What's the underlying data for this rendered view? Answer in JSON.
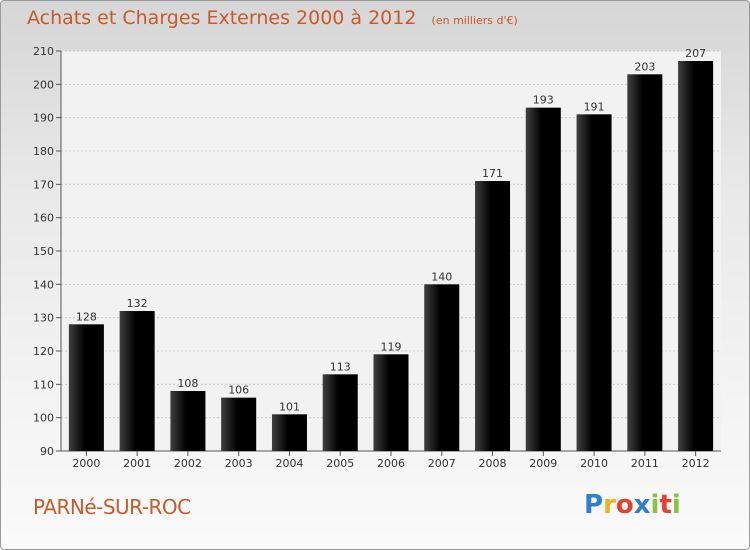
{
  "chart_data": {
    "type": "bar",
    "title": "Achats et Charges Externes 2000 à 2012",
    "subtitle": "(en milliers d'€)",
    "categories": [
      "2000",
      "2001",
      "2002",
      "2003",
      "2004",
      "2005",
      "2006",
      "2007",
      "2008",
      "2009",
      "2010",
      "2011",
      "2012"
    ],
    "values": [
      128,
      132,
      108,
      106,
      101,
      113,
      119,
      140,
      171,
      193,
      191,
      203,
      207
    ],
    "ylim": [
      90,
      210
    ],
    "yticks": [
      90,
      100,
      110,
      120,
      130,
      140,
      150,
      160,
      170,
      180,
      190,
      200,
      210
    ],
    "grid": true,
    "bar_color": "#e8852e",
    "xlabel": "",
    "ylabel": ""
  },
  "commune": "PARNé-SUR-ROC",
  "logo": {
    "text": "Proxiti",
    "letters": [
      "P",
      "r",
      "o",
      "x",
      "i",
      "t",
      "i"
    ],
    "colors": [
      "#2e7fd0",
      "#f0b419",
      "#e8402e",
      "#2e7fd0",
      "#8ac43f",
      "#e8402e",
      "#8ac43f"
    ]
  }
}
